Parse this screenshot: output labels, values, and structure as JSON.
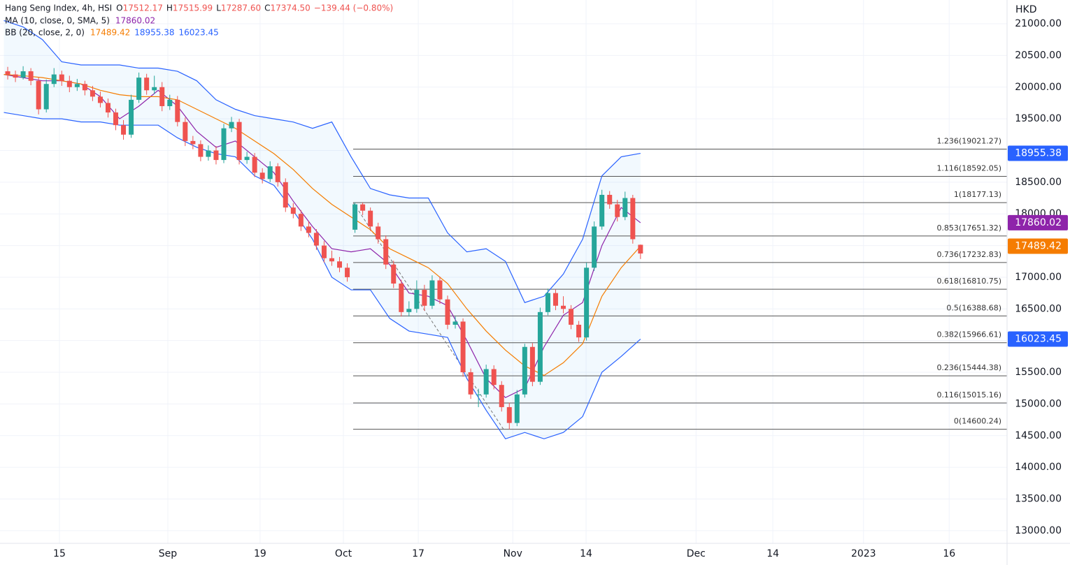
{
  "chart_data": {
    "type": "candlestick",
    "title": "Hang Seng Index, 4h, HSI",
    "ohlc_prefixes": [
      "O",
      "H",
      "L",
      "C"
    ],
    "last_labels": [
      "17512.17",
      "17515.99",
      "17287.60",
      "17374.50"
    ],
    "change": "−139.44 (−0.80%)",
    "currency": "HKD",
    "up_color": "#26a69a",
    "down_color": "#ef5350",
    "x": [
      1,
      3,
      5,
      7,
      9,
      11,
      13,
      15,
      17,
      19,
      21,
      23,
      25,
      27,
      29,
      31,
      33,
      35,
      37,
      39,
      41,
      43,
      45,
      47,
      49,
      51,
      53,
      55,
      57,
      59,
      61,
      63,
      65,
      67,
      69,
      71,
      73,
      75,
      77,
      79,
      81,
      83,
      85,
      87,
      89,
      91,
      93,
      95,
      97,
      99,
      101,
      103,
      105,
      107,
      109,
      111,
      113,
      115,
      117,
      119,
      121,
      123,
      125,
      127,
      129,
      131,
      133,
      135,
      137,
      139,
      141,
      143,
      145,
      147,
      149,
      151,
      153,
      155,
      157,
      159,
      161,
      163,
      165
    ],
    "ohlc": [
      [
        20250,
        20320,
        20120,
        20200
      ],
      [
        20200,
        20260,
        20080,
        20150
      ],
      [
        20150,
        20330,
        20120,
        20250
      ],
      [
        20250,
        20300,
        20030,
        20100
      ],
      [
        20100,
        20150,
        19570,
        19650
      ],
      [
        19650,
        20120,
        19600,
        20050
      ],
      [
        20050,
        20300,
        20000,
        20200
      ],
      [
        20200,
        20260,
        20020,
        20100
      ],
      [
        20100,
        20180,
        19920,
        20000
      ],
      [
        20000,
        20130,
        19940,
        20050
      ],
      [
        20050,
        20100,
        19870,
        19950
      ],
      [
        19950,
        20020,
        19780,
        19850
      ],
      [
        19850,
        19930,
        19680,
        19750
      ],
      [
        19750,
        19820,
        19520,
        19600
      ],
      [
        19600,
        19660,
        19320,
        19400
      ],
      [
        19400,
        19480,
        19170,
        19250
      ],
      [
        19250,
        19880,
        19200,
        19800
      ],
      [
        19800,
        20230,
        19750,
        20150
      ],
      [
        20150,
        20210,
        19880,
        19950
      ],
      [
        19950,
        20180,
        19890,
        20000
      ],
      [
        20000,
        20080,
        19620,
        19700
      ],
      [
        19700,
        19880,
        19640,
        19800
      ],
      [
        19800,
        19860,
        19380,
        19450
      ],
      [
        19450,
        19520,
        19070,
        19150
      ],
      [
        19150,
        19230,
        19020,
        19100
      ],
      [
        19100,
        19160,
        18830,
        18900
      ],
      [
        18900,
        19080,
        18840,
        19000
      ],
      [
        19000,
        19070,
        18780,
        18850
      ],
      [
        18850,
        19420,
        18800,
        19350
      ],
      [
        19350,
        19530,
        19290,
        19450
      ],
      [
        19450,
        19500,
        18780,
        18850
      ],
      [
        18850,
        18980,
        18790,
        18900
      ],
      [
        18900,
        18960,
        18580,
        18650
      ],
      [
        18650,
        18720,
        18480,
        18550
      ],
      [
        18550,
        18830,
        18500,
        18750
      ],
      [
        18750,
        18800,
        18430,
        18500
      ],
      [
        18500,
        18560,
        18030,
        18100
      ],
      [
        18100,
        18170,
        17930,
        18000
      ],
      [
        18000,
        18060,
        17730,
        17800
      ],
      [
        17800,
        17880,
        17630,
        17700
      ],
      [
        17700,
        17760,
        17430,
        17500
      ],
      [
        17500,
        17570,
        17230,
        17300
      ],
      [
        17300,
        17420,
        17180,
        17250
      ],
      [
        17250,
        17320,
        17080,
        17150
      ],
      [
        17150,
        17220,
        16930,
        17000
      ],
      [
        17750,
        18180,
        17700,
        18150
      ],
      [
        18150,
        18177.13,
        17980,
        18050
      ],
      [
        18050,
        18100,
        17730,
        17800
      ],
      [
        17800,
        17860,
        17530,
        17600
      ],
      [
        17600,
        17660,
        17130,
        17200
      ],
      [
        17200,
        17260,
        16830,
        16900
      ],
      [
        16900,
        16960,
        16380,
        16450
      ],
      [
        16450,
        16620,
        16380,
        16500
      ],
      [
        16500,
        16950,
        16440,
        16800
      ],
      [
        16800,
        16880,
        16470,
        16550
      ],
      [
        16550,
        17030,
        16500,
        16950
      ],
      [
        16950,
        17010,
        16580,
        16650
      ],
      [
        16650,
        16710,
        16180,
        16250
      ],
      [
        16250,
        16380,
        16190,
        16300
      ],
      [
        16300,
        16350,
        15430,
        15500
      ],
      [
        15500,
        15560,
        15080,
        15150
      ],
      [
        15150,
        15240,
        14950,
        15150
      ],
      [
        15150,
        15620,
        15100,
        15550
      ],
      [
        15550,
        15610,
        15230,
        15300
      ],
      [
        15300,
        15360,
        14880,
        14950
      ],
      [
        14950,
        15020,
        14600.24,
        14700
      ],
      [
        14700,
        15220,
        14650,
        15150
      ],
      [
        15150,
        15950,
        15100,
        15900
      ],
      [
        15900,
        15960,
        15280,
        15350
      ],
      [
        15350,
        16520,
        15300,
        16450
      ],
      [
        16450,
        16820,
        16400,
        16750
      ],
      [
        16750,
        16810,
        16480,
        16550
      ],
      [
        16550,
        16700,
        16430,
        16500
      ],
      [
        16500,
        16560,
        16180,
        16250
      ],
      [
        16250,
        16310,
        15980,
        16050
      ],
      [
        16050,
        17230,
        16000,
        17150
      ],
      [
        17150,
        17880,
        17100,
        17800
      ],
      [
        17800,
        18380,
        17750,
        18300
      ],
      [
        18300,
        18360,
        18080,
        18150
      ],
      [
        18150,
        18220,
        17880,
        17950
      ],
      [
        17950,
        18350,
        17900,
        18250
      ],
      [
        18250,
        18300,
        17530,
        17600
      ],
      [
        17512.17,
        17515.99,
        17287.6,
        17374.5
      ]
    ],
    "line_x": [
      0,
      5,
      10,
      15,
      20,
      25,
      30,
      35,
      40,
      45,
      50,
      55,
      60,
      65,
      70,
      75,
      80,
      85,
      90,
      95,
      100,
      105,
      110,
      115,
      120,
      125,
      130,
      135,
      140,
      145,
      150,
      155,
      160,
      165
    ],
    "indicators": [
      {
        "name": "MA (10, close, 0, SMA, 5)",
        "lines": [
          {
            "color": "#8e24aa",
            "values": [
              20200,
              20150,
              20100,
              20100,
              20050,
              19850,
              19500,
              19700,
              19950,
              19700,
              19300,
              19050,
              19150,
              18900,
              18650,
              18200,
              17800,
              17450,
              17400,
              17450,
              17200,
              16750,
              16700,
              16550,
              16000,
              15400,
              15100,
              15250,
              15900,
              16400,
              16600,
              17500,
              18100,
              17860.02
            ]
          }
        ]
      },
      {
        "name": "BB (20, close, 2, 0)",
        "lines": [
          {
            "color": "#f57c00",
            "values": [
              20200,
              20180,
              20150,
              20100,
              20050,
              19950,
              19880,
              19850,
              19850,
              19800,
              19650,
              19500,
              19350,
              19150,
              18950,
              18700,
              18400,
              18150,
              17950,
              17750,
              17450,
              17300,
              17150,
              16900,
              16500,
              16150,
              15850,
              15600,
              15450,
              15650,
              15950,
              16700,
              17150,
              17489.42
            ]
          },
          {
            "color": "#2962ff",
            "values": [
              21050,
              20950,
              20750,
              20400,
              20350,
              20350,
              20350,
              20300,
              20300,
              20250,
              20100,
              19800,
              19650,
              19550,
              19500,
              19450,
              19350,
              19450,
              18900,
              18400,
              18300,
              18250,
              18250,
              17700,
              17400,
              17450,
              17250,
              16600,
              16700,
              17050,
              17600,
              18600,
              18900,
              18955.38
            ]
          },
          {
            "color": "#2962ff",
            "values": [
              19600,
              19550,
              19500,
              19500,
              19450,
              19450,
              19400,
              19400,
              19400,
              19200,
              19050,
              18950,
              18900,
              18600,
              18450,
              18050,
              17600,
              17000,
              16800,
              16800,
              16350,
              16150,
              16100,
              16050,
              15400,
              14900,
              14450,
              14550,
              14450,
              14550,
              14800,
              15500,
              15750,
              16023.45
            ]
          }
        ]
      }
    ],
    "band_fill": "rgba(33,150,243,0.06)",
    "fib_color": "#555555",
    "fib_levels": [
      {
        "value": 19021.27,
        "label": "1.236(19021.27)"
      },
      {
        "value": 18592.05,
        "label": "1.116(18592.05)"
      },
      {
        "value": 18177.13,
        "label": "1(18177.13)"
      },
      {
        "value": 17651.32,
        "label": "0.853(17651.32)"
      },
      {
        "value": 17232.83,
        "label": "0.736(17232.83)"
      },
      {
        "value": 16810.75,
        "label": "0.618(16810.75)"
      },
      {
        "value": 16388.68,
        "label": "0.5(16388.68)"
      },
      {
        "value": 15966.61,
        "label": "0.382(15966.61)"
      },
      {
        "value": 15444.38,
        "label": "0.236(15444.38)"
      },
      {
        "value": 15015.16,
        "label": "0.116(15015.16)"
      },
      {
        "value": 14600.24,
        "label": "0(14600.24)"
      }
    ],
    "xlim": [
      -1,
      260
    ],
    "xticks": [
      {
        "value": 14.4,
        "label": "15"
      },
      {
        "value": 42.5,
        "label": "Sep"
      },
      {
        "value": 66.4,
        "label": "19"
      },
      {
        "value": 88,
        "label": "Oct"
      },
      {
        "value": 107.4,
        "label": "17"
      },
      {
        "value": 131.9,
        "label": "Nov"
      },
      {
        "value": 150.9,
        "label": "14"
      },
      {
        "value": 179.4,
        "label": "Dec"
      },
      {
        "value": 199.3,
        "label": "14"
      },
      {
        "value": 222.8,
        "label": "2023"
      },
      {
        "value": 245,
        "label": "16"
      }
    ],
    "ylim": [
      12800,
      21375
    ],
    "yticks": [
      {
        "value": 13000,
        "label": "13000.00"
      },
      {
        "value": 13500,
        "label": "13500.00"
      },
      {
        "value": 14000,
        "label": "14000.00"
      },
      {
        "value": 14500,
        "label": "14500.00"
      },
      {
        "value": 15000,
        "label": "15000.00"
      },
      {
        "value": 15500,
        "label": "15500.00"
      },
      {
        "value": 16000,
        "label": "16000.00"
      },
      {
        "value": 16500,
        "label": "16500.00"
      },
      {
        "value": 17000,
        "label": "17000.00"
      },
      {
        "value": 17500,
        "label": "17500.00"
      },
      {
        "value": 18000,
        "label": "18000.00"
      },
      {
        "value": 18500,
        "label": "18500.00"
      },
      {
        "value": 19000,
        "label": "19000.00"
      },
      {
        "value": 19500,
        "label": "19500.00"
      },
      {
        "value": 20000,
        "label": "20000.00"
      },
      {
        "value": 20500,
        "label": "20500.00"
      },
      {
        "value": 21000,
        "label": "21000.00"
      }
    ],
    "grid": true
  }
}
